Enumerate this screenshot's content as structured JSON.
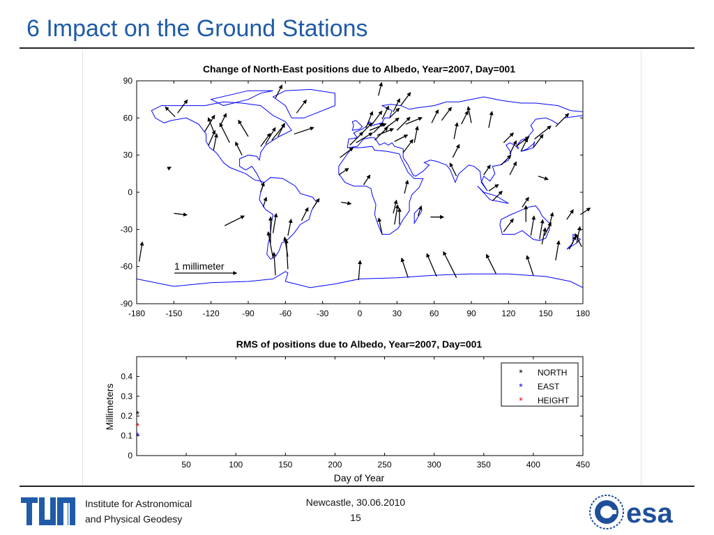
{
  "slide": {
    "title": "6 Impact on the Ground Stations"
  },
  "footer": {
    "institute_line1": "Institute for Astronomical",
    "institute_line2": "and Physical Geodesy",
    "place_date": "Newcastle, 30.06.2010",
    "page_number": "15",
    "tum_logo_text": "TUM",
    "esa_logo_text": "esa"
  },
  "colors": {
    "title": "#1f5ba8",
    "coast": "#0000ff",
    "arrow": "#000000",
    "north": "#000000",
    "east": "#0000ff",
    "height": "#ff0000"
  },
  "chart_data": [
    {
      "type": "scatter",
      "title": "Change of North-East positions due to Albedo, Year=2007, Day=001",
      "xlabel": "",
      "ylabel": "",
      "xlim": [
        -180,
        180
      ],
      "ylim": [
        -90,
        90
      ],
      "xticks": [
        -180,
        -150,
        -120,
        -90,
        -60,
        -30,
        0,
        30,
        60,
        90,
        120,
        150,
        180
      ],
      "yticks": [
        90,
        60,
        30,
        0,
        -30,
        -60,
        -90
      ],
      "scale_annotation": "1 millimeter",
      "scale_arrow_mm": 1,
      "note": "arrows are station displacement vectors (east, north) in mm at station lon/lat",
      "stations": [
        {
          "lon": -155,
          "lat": 19,
          "e": 0.1,
          "n": 0.05
        },
        {
          "lon": -149,
          "lat": 61,
          "e": -0.3,
          "n": 0.3
        },
        {
          "lon": -147,
          "lat": 64,
          "e": 0.3,
          "n": 0.4
        },
        {
          "lon": -125,
          "lat": 49,
          "e": 0.3,
          "n": 0.5
        },
        {
          "lon": -122,
          "lat": 38,
          "e": 0.2,
          "n": 0.45
        },
        {
          "lon": -118,
          "lat": 34,
          "e": 0.1,
          "n": 0.5
        },
        {
          "lon": -117,
          "lat": 47,
          "e": -0.2,
          "n": 0.5
        },
        {
          "lon": -113,
          "lat": 53,
          "e": 0.2,
          "n": 0.4
        },
        {
          "lon": -105,
          "lat": 40,
          "e": -0.3,
          "n": 0.6
        },
        {
          "lon": -95,
          "lat": 30,
          "e": -0.2,
          "n": 0.4
        },
        {
          "lon": -90,
          "lat": 45,
          "e": -0.3,
          "n": 0.5
        },
        {
          "lon": -80,
          "lat": 37,
          "e": 0.3,
          "n": 0.4
        },
        {
          "lon": -76,
          "lat": 39,
          "e": 0.3,
          "n": 0.5
        },
        {
          "lon": -71,
          "lat": 42,
          "e": 0.4,
          "n": 0.5
        },
        {
          "lon": -66,
          "lat": 45,
          "e": 0.2,
          "n": 0.4
        },
        {
          "lon": -53,
          "lat": 47,
          "e": 0.6,
          "n": 0.2
        },
        {
          "lon": -68,
          "lat": 76,
          "e": 0.2,
          "n": 0.4
        },
        {
          "lon": -51,
          "lat": 64,
          "e": 0.3,
          "n": 0.4
        },
        {
          "lon": -150,
          "lat": -17,
          "e": 0.4,
          "n": -0.05
        },
        {
          "lon": -109,
          "lat": -27,
          "e": 0.6,
          "n": 0.3
        },
        {
          "lon": -80,
          "lat": 0,
          "e": 0.1,
          "n": 0.3
        },
        {
          "lon": -78,
          "lat": -12,
          "e": 0.1,
          "n": 0.3
        },
        {
          "lon": -70,
          "lat": -33,
          "e": 0.1,
          "n": 0.6
        },
        {
          "lon": -72,
          "lat": -41,
          "e": 0.0,
          "n": 0.8
        },
        {
          "lon": -70,
          "lat": -53,
          "e": -0.15,
          "n": 0.8
        },
        {
          "lon": -58,
          "lat": -35,
          "e": 0.1,
          "n": 0.5
        },
        {
          "lon": -47,
          "lat": -23,
          "e": 0.2,
          "n": 0.4
        },
        {
          "lon": -38,
          "lat": -13,
          "e": 0.2,
          "n": 0.3
        },
        {
          "lon": -58,
          "lat": -52,
          "e": -0.1,
          "n": 0.6
        },
        {
          "lon": -58,
          "lat": -62,
          "e": -0.05,
          "n": 0.9
        },
        {
          "lon": -16,
          "lat": 28,
          "e": 0.4,
          "n": 0.3
        },
        {
          "lon": -8,
          "lat": 38,
          "e": 0.4,
          "n": 0.4
        },
        {
          "lon": -3,
          "lat": 40,
          "e": 0.5,
          "n": 0.3
        },
        {
          "lon": 2,
          "lat": 48,
          "e": 0.3,
          "n": 0.3
        },
        {
          "lon": 5,
          "lat": 52,
          "e": 0.2,
          "n": 0.5
        },
        {
          "lon": 8,
          "lat": 50,
          "e": 0.5,
          "n": 0.2
        },
        {
          "lon": 11,
          "lat": 48,
          "e": 0.3,
          "n": 0.3
        },
        {
          "lon": 12,
          "lat": 42,
          "e": 0.4,
          "n": 0.4
        },
        {
          "lon": 14,
          "lat": 46,
          "e": 0.5,
          "n": 0.2
        },
        {
          "lon": 10,
          "lat": 55,
          "e": 0.3,
          "n": 0.4
        },
        {
          "lon": 18,
          "lat": 59,
          "e": 0.2,
          "n": 0.4
        },
        {
          "lon": 21,
          "lat": 52,
          "e": 0.4,
          "n": 0.3
        },
        {
          "lon": 24,
          "lat": 60,
          "e": 0.3,
          "n": 0.3
        },
        {
          "lon": 27,
          "lat": 65,
          "e": 0.2,
          "n": 0.4
        },
        {
          "lon": 15,
          "lat": 78,
          "e": 0.1,
          "n": 0.4
        },
        {
          "lon": 30,
          "lat": 50,
          "e": 0.4,
          "n": 0.4
        },
        {
          "lon": 37,
          "lat": 55,
          "e": 0.5,
          "n": 0.2
        },
        {
          "lon": 33,
          "lat": 70,
          "e": 0.3,
          "n": 0.4
        },
        {
          "lon": 28,
          "lat": 41,
          "e": 0.4,
          "n": 0.2
        },
        {
          "lon": 35,
          "lat": 32,
          "e": 0.3,
          "n": 0.4
        },
        {
          "lon": 44,
          "lat": 40,
          "e": 0.1,
          "n": 0.5
        },
        {
          "lon": 58,
          "lat": 56,
          "e": 0.2,
          "n": 0.4
        },
        {
          "lon": 66,
          "lat": 58,
          "e": 0.3,
          "n": 0.4
        },
        {
          "lon": 76,
          "lat": 43,
          "e": 0.1,
          "n": 0.5
        },
        {
          "lon": 82,
          "lat": 55,
          "e": 0.2,
          "n": 0.4
        },
        {
          "lon": 90,
          "lat": 56,
          "e": -0.1,
          "n": 0.5
        },
        {
          "lon": 104,
          "lat": 52,
          "e": 0.1,
          "n": 0.5
        },
        {
          "lon": 116,
          "lat": 40,
          "e": 0.3,
          "n": 0.3
        },
        {
          "lon": 121,
          "lat": 31,
          "e": 0.2,
          "n": 0.4
        },
        {
          "lon": 126,
          "lat": 37,
          "e": 0.4,
          "n": 0.3
        },
        {
          "lon": 130,
          "lat": 33,
          "e": 0.2,
          "n": 0.4
        },
        {
          "lon": 140,
          "lat": 36,
          "e": 0.3,
          "n": 0.4
        },
        {
          "lon": 141,
          "lat": 43,
          "e": 0.5,
          "n": 0.4
        },
        {
          "lon": 158,
          "lat": 53,
          "e": 0.4,
          "n": 0.4
        },
        {
          "lon": 75,
          "lat": 28,
          "e": 0.2,
          "n": 0.4
        },
        {
          "lon": 78,
          "lat": 13,
          "e": -0.2,
          "n": 0.4
        },
        {
          "lon": 100,
          "lat": 14,
          "e": 0.2,
          "n": 0.3
        },
        {
          "lon": 114,
          "lat": 22,
          "e": 0.3,
          "n": 0.3
        },
        {
          "lon": 104,
          "lat": 1,
          "e": 0.3,
          "n": 0.2
        },
        {
          "lon": 107,
          "lat": -7,
          "e": 0.3,
          "n": 0.3
        },
        {
          "lon": 121,
          "lat": 14,
          "e": 0.2,
          "n": 0.4
        },
        {
          "lon": 144,
          "lat": 13,
          "e": 0.3,
          "n": -0.1
        },
        {
          "lon": -17,
          "lat": 14,
          "e": 0.3,
          "n": 0.2
        },
        {
          "lon": 3,
          "lat": 6,
          "e": 0.2,
          "n": 0.3
        },
        {
          "lon": 36,
          "lat": -1,
          "e": 0.1,
          "n": 0.4
        },
        {
          "lon": 32,
          "lat": -26,
          "e": 0.0,
          "n": 0.5
        },
        {
          "lon": 28,
          "lat": -26,
          "e": 0.1,
          "n": 0.6
        },
        {
          "lon": 18,
          "lat": -34,
          "e": -0.1,
          "n": 0.5
        },
        {
          "lon": 27,
          "lat": -17,
          "e": 0.1,
          "n": 0.4
        },
        {
          "lon": 47,
          "lat": -19,
          "e": 0.1,
          "n": 0.3
        },
        {
          "lon": 57,
          "lat": -20,
          "e": 0.4,
          "n": 0.0
        },
        {
          "lon": 116,
          "lat": -32,
          "e": 0.3,
          "n": 0.4
        },
        {
          "lon": 131,
          "lat": -12,
          "e": 0.2,
          "n": 0.3
        },
        {
          "lon": 134,
          "lat": -24,
          "e": 0.0,
          "n": 0.5
        },
        {
          "lon": 138,
          "lat": -35,
          "e": 0.1,
          "n": 0.6
        },
        {
          "lon": 145,
          "lat": -38,
          "e": 0.1,
          "n": 0.6
        },
        {
          "lon": 147,
          "lat": -42,
          "e": 0.1,
          "n": 0.5
        },
        {
          "lon": 149,
          "lat": -35,
          "e": 0.2,
          "n": 0.4
        },
        {
          "lon": 153,
          "lat": -27,
          "e": 0.1,
          "n": 0.4
        },
        {
          "lon": 167,
          "lat": -22,
          "e": 0.2,
          "n": 0.3
        },
        {
          "lon": 175,
          "lat": -41,
          "e": 0.1,
          "n": 0.5
        },
        {
          "lon": 169,
          "lat": -46,
          "e": 0.2,
          "n": 0.4
        },
        {
          "lon": 178,
          "lat": -18,
          "e": 0.3,
          "n": 0.2
        },
        {
          "lon": 158,
          "lat": -55,
          "e": 0.1,
          "n": 0.6
        },
        {
          "lon": 179,
          "lat": -44,
          "e": -0.2,
          "n": 0.4
        },
        {
          "lon": 140,
          "lat": -67,
          "e": -0.2,
          "n": 0.6
        },
        {
          "lon": 110,
          "lat": -66,
          "e": -0.3,
          "n": 0.6
        },
        {
          "lon": 78,
          "lat": -69,
          "e": -0.4,
          "n": 0.8
        },
        {
          "lon": 62,
          "lat": -68,
          "e": -0.3,
          "n": 0.7
        },
        {
          "lon": 39,
          "lat": -69,
          "e": -0.2,
          "n": 0.6
        },
        {
          "lon": -1,
          "lat": -71,
          "e": 0.05,
          "n": 0.6
        },
        {
          "lon": -68,
          "lat": -67,
          "e": -0.05,
          "n": 0.7
        },
        {
          "lon": -178,
          "lat": -56,
          "e": 0.1,
          "n": 0.6
        },
        {
          "lon": -15,
          "lat": -8,
          "e": 0.3,
          "n": -0.05
        }
      ]
    },
    {
      "type": "scatter",
      "title": "RMS of positions due to Albedo, Year=2007, Day=001",
      "xlabel": "Day of Year",
      "ylabel": "Millimeters",
      "xlim": [
        0,
        450
      ],
      "ylim": [
        0,
        0.5
      ],
      "xticks": [
        50,
        100,
        150,
        200,
        250,
        300,
        350,
        400,
        450
      ],
      "yticks": [
        0,
        0.1,
        0.2,
        0.3,
        0.4
      ],
      "legend_position": "top-right",
      "series": [
        {
          "name": "NORTH",
          "color": "#000000",
          "x": [
            1
          ],
          "y": [
            0.21
          ]
        },
        {
          "name": "EAST",
          "color": "#0000ff",
          "x": [
            1
          ],
          "y": [
            0.1
          ]
        },
        {
          "name": "HEIGHT",
          "color": "#ff0000",
          "x": [
            1
          ],
          "y": [
            0.15
          ]
        }
      ]
    }
  ]
}
